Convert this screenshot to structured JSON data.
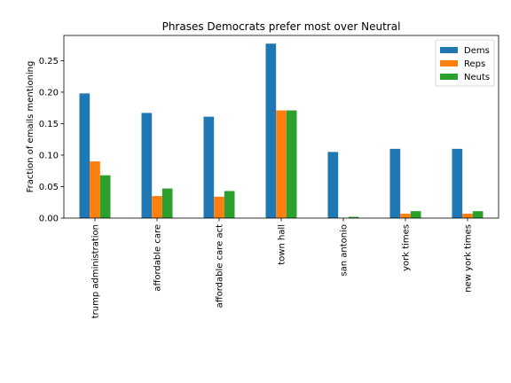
{
  "chart_data": {
    "type": "bar",
    "title": "Phrases Democrats prefer most over Neutral",
    "xlabel": "",
    "ylabel": "Fraction of emails mentioning",
    "ylim": [
      0,
      0.29
    ],
    "yticks": [
      0.0,
      0.05,
      0.1,
      0.15,
      0.2,
      0.25
    ],
    "ytick_labels": [
      "0.00",
      "0.05",
      "0.10",
      "0.15",
      "0.20",
      "0.25"
    ],
    "grid": false,
    "legend_position": "top-right",
    "categories": [
      "trump administration",
      "affordable care",
      "affordable care act",
      "town hall",
      "san antonio",
      "york times",
      "new york times"
    ],
    "series": [
      {
        "name": "Dems",
        "color": "#1f77b4",
        "values": [
          0.198,
          0.167,
          0.161,
          0.277,
          0.105,
          0.11,
          0.11
        ]
      },
      {
        "name": "Reps",
        "color": "#ff7f0e",
        "values": [
          0.09,
          0.035,
          0.034,
          0.171,
          0.0,
          0.007,
          0.007
        ]
      },
      {
        "name": "Neuts",
        "color": "#2ca02c",
        "values": [
          0.068,
          0.047,
          0.043,
          0.171,
          0.002,
          0.011,
          0.011
        ]
      }
    ]
  }
}
